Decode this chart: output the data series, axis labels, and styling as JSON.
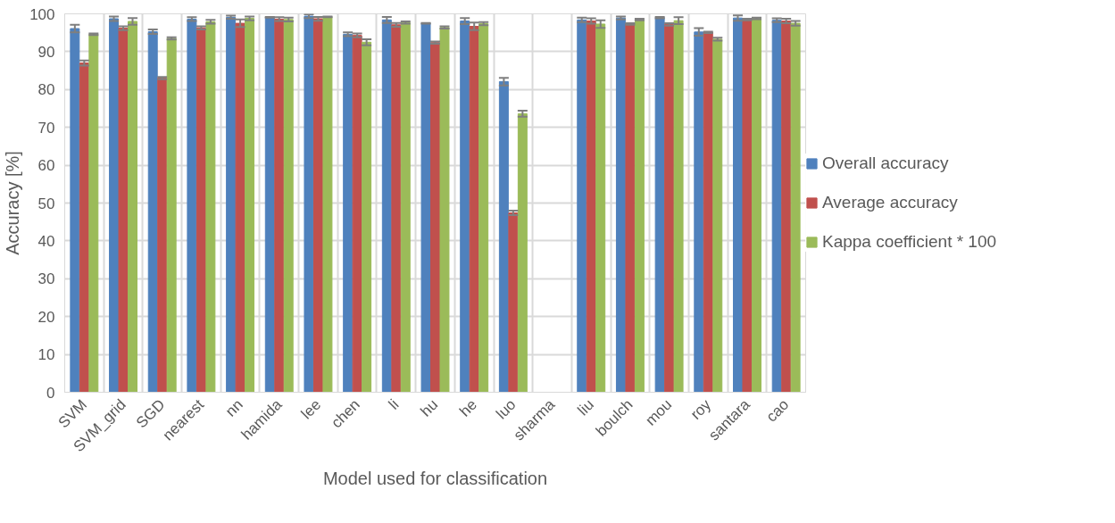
{
  "chart_data": {
    "type": "bar",
    "xlabel": "Model used for classification",
    "ylabel": "Accuracy [%]",
    "categories": [
      "SVM",
      "SVM_grid",
      "SGD",
      "nearest",
      "nn",
      "hamida",
      "lee",
      "chen",
      "li",
      "hu",
      "he",
      "luo",
      "sharma",
      "liu",
      "boulch",
      "mou",
      "roy",
      "santara",
      "cao"
    ],
    "series": [
      {
        "name": "Overall accuracy",
        "color": "#4f81bd",
        "values": [
          96.1,
          98.7,
          95.3,
          98.6,
          99.1,
          99.1,
          99.4,
          94.6,
          98.4,
          97.5,
          98.1,
          82.1,
          0,
          98.4,
          98.9,
          99.0,
          95.2,
          98.9,
          98.3
        ],
        "errors": [
          1.0,
          0.6,
          0.6,
          0.5,
          0.4,
          0.1,
          0.5,
          0.5,
          0.8,
          0.1,
          0.8,
          1.0,
          null,
          0.6,
          0.4,
          0.2,
          1.0,
          0.7,
          0.5
        ]
      },
      {
        "name": "Average accuracy",
        "color": "#c0504d",
        "values": [
          87.0,
          96.2,
          83.0,
          96.3,
          97.5,
          98.6,
          98.7,
          94.3,
          97.1,
          92.4,
          96.7,
          47.4,
          0,
          98.1,
          97.3,
          97.2,
          95.1,
          98.5,
          98.1
        ],
        "errors": [
          0.7,
          0.5,
          0.3,
          0.4,
          1.0,
          0.5,
          0.5,
          0.5,
          0.5,
          0.3,
          1.0,
          0.6,
          null,
          0.7,
          0.2,
          0.3,
          0.2,
          0.2,
          0.6
        ]
      },
      {
        "name": "Kappa coefficient * 100",
        "color": "#9bbb59",
        "values": [
          94.6,
          98.0,
          93.5,
          97.9,
          98.8,
          98.5,
          99.2,
          92.5,
          97.7,
          96.4,
          97.4,
          73.6,
          0,
          97.3,
          98.5,
          98.2,
          93.3,
          98.8,
          97.5
        ],
        "errors": [
          0.2,
          0.9,
          0.3,
          0.5,
          0.5,
          0.5,
          0.1,
          0.8,
          0.3,
          0.3,
          0.4,
          0.8,
          null,
          1.0,
          0.2,
          0.9,
          0.4,
          0.2,
          0.6
        ]
      }
    ],
    "ylim": [
      0,
      100
    ],
    "yticks": [
      0,
      10,
      20,
      30,
      40,
      50,
      60,
      70,
      80,
      90,
      100
    ],
    "grid": true,
    "legend": "right"
  }
}
